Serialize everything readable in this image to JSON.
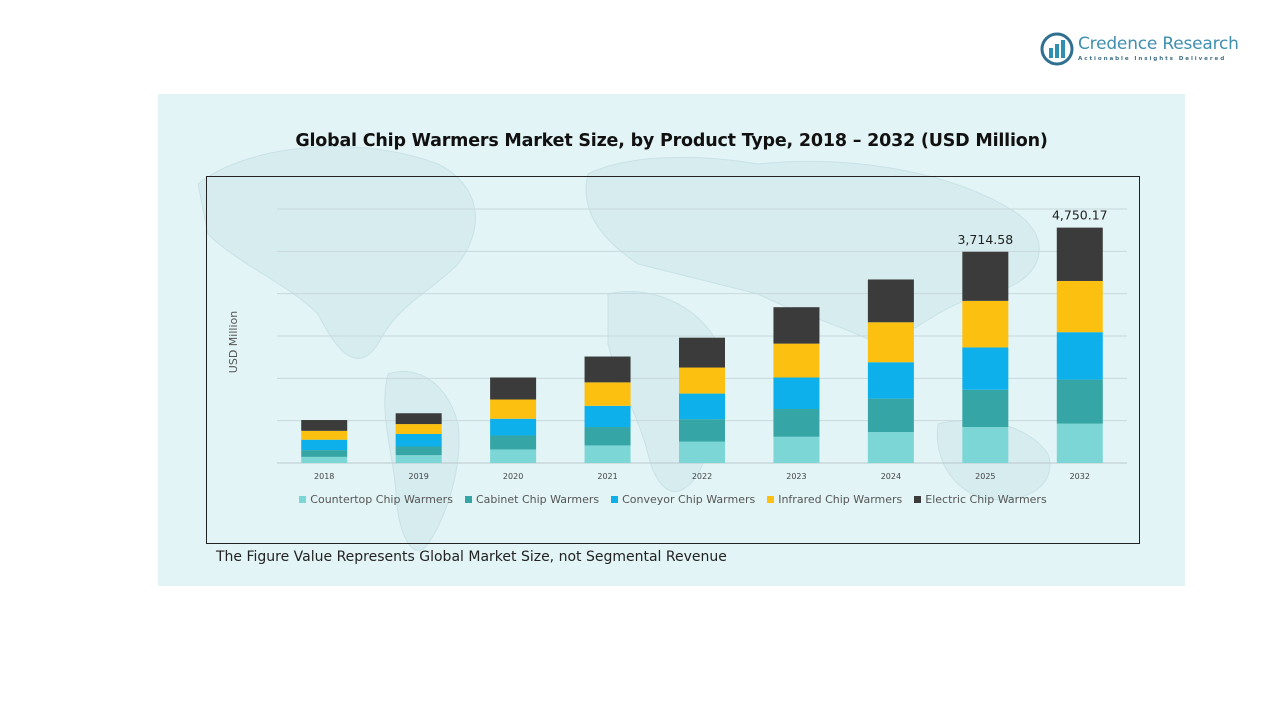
{
  "brand": {
    "name": "Credence Research",
    "tagline": "Actionable Insights Delivered"
  },
  "footnote": "The Figure Value Represents Global Market Size, not Segmental Revenue",
  "colors": {
    "panel_bg": "#e2f4f6",
    "grid": "#c8d8dc"
  },
  "chart_data": {
    "type": "bar",
    "stacked": true,
    "title": "Global Chip Warmers Market Size, by Product Type, 2018 – 2032 (USD Million)",
    "xlabel": "",
    "ylabel": "USD Million",
    "ylim": [
      0,
      6000
    ],
    "y_ticks_shown": false,
    "grid": true,
    "legend_position": "bottom",
    "categories": [
      "2018",
      "2019",
      "2020",
      "2021",
      "2022",
      "2023",
      "2024",
      "2025",
      "2032"
    ],
    "series": [
      {
        "name": "Countertop Chip Warmers",
        "color": "#7dd6d6",
        "values": [
          145,
          185,
          320,
          415,
          505,
          620,
          730,
          850,
          930
        ]
      },
      {
        "name": "Cabinet Chip Warmers",
        "color": "#35a5a5",
        "values": [
          160,
          205,
          330,
          435,
          530,
          655,
          790,
          880,
          1040
        ]
      },
      {
        "name": "Conveyor Chip Warmers",
        "color": "#0db0ea",
        "values": [
          245,
          295,
          395,
          500,
          605,
          745,
          860,
          1000,
          1120
        ]
      },
      {
        "name": "Infrared Chip Warmers",
        "color": "#fcc010",
        "values": [
          210,
          235,
          455,
          555,
          615,
          800,
          945,
          1100,
          1210
        ]
      },
      {
        "name": "Electric Chip Warmers",
        "color": "#3b3b3b",
        "values": [
          255,
          255,
          520,
          610,
          705,
          860,
          1010,
          1160,
          1260
        ]
      }
    ],
    "total_labels": [
      {
        "category": "2025",
        "text": "3,714.58"
      },
      {
        "category": "2032",
        "text": "4,750.17"
      }
    ]
  }
}
